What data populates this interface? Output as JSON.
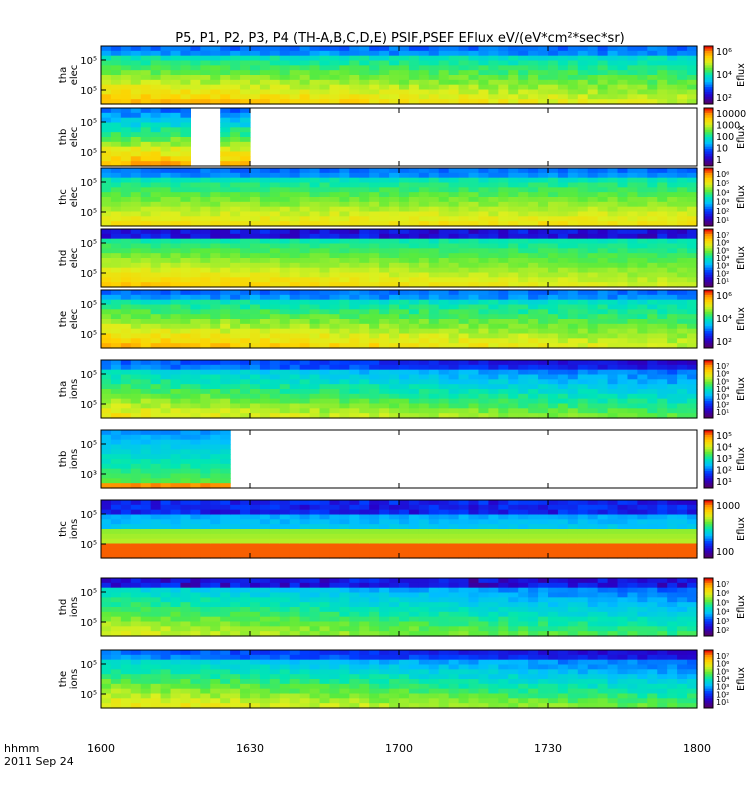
{
  "chart_data": {
    "type": "heatmap",
    "title": "P5, P1, P2, P3, P4  (TH-A,B,C,D,E) PSIF,PSEF EFlux eV/(eV*cm²*sec*sr)",
    "x_ticks": [
      "1600",
      "1630",
      "1700",
      "1730",
      "1800"
    ],
    "time_label": "hhmm",
    "date_label": "2011 Sep 24",
    "colorbar_label": "Eflux",
    "panels": [
      {
        "name": "tha elec",
        "line1": "tha",
        "line2": "elec",
        "y_ticks": [
          "10⁵",
          "10⁵"
        ],
        "cbar_ticks": [
          "10⁶",
          "10⁴",
          "10²"
        ],
        "pattern": "elec",
        "gap": null
      },
      {
        "name": "thb elec",
        "line1": "thb",
        "line2": "elec",
        "y_ticks": [
          "10⁵",
          "10⁵"
        ],
        "cbar_ticks": [
          "10000",
          "1000",
          "100",
          "10",
          "1"
        ],
        "pattern": "thb_elec",
        "gap": [
          0.14,
          0.2
        ]
      },
      {
        "name": "thc elec",
        "line1": "thc",
        "line2": "elec",
        "y_ticks": [
          "10⁵",
          "10⁵"
        ],
        "cbar_ticks": [
          "10⁶",
          "10⁵",
          "10⁴",
          "10³",
          "10²",
          "10¹"
        ],
        "pattern": "elec_flat",
        "gap": null
      },
      {
        "name": "thd elec",
        "line1": "thd",
        "line2": "elec",
        "y_ticks": [
          "10⁵",
          "10⁵"
        ],
        "cbar_ticks": [
          "10⁷",
          "10⁶",
          "10⁵",
          "10⁴",
          "10³",
          "10²",
          "10¹"
        ],
        "pattern": "elec_dark",
        "gap": null
      },
      {
        "name": "the elec",
        "line1": "the",
        "line2": "elec",
        "y_ticks": [
          "10⁵",
          "10⁵"
        ],
        "cbar_ticks": [
          "10⁶",
          "10⁴",
          "10²"
        ],
        "pattern": "elec",
        "gap": null
      },
      {
        "name": "tha ions",
        "line1": "tha",
        "line2": "ions",
        "y_ticks": [
          "10⁵",
          "10⁵"
        ],
        "cbar_ticks": [
          "10⁷",
          "10⁶",
          "10⁵",
          "10⁴",
          "10³",
          "10²",
          "10¹"
        ],
        "pattern": "ions",
        "gap": null
      },
      {
        "name": "thb ions",
        "line1": "thb",
        "line2": "ions",
        "y_ticks": [
          "10⁵",
          "10³"
        ],
        "cbar_ticks": [
          "10⁵",
          "10⁴",
          "10³",
          "10²",
          "10¹"
        ],
        "pattern": "thb_ions",
        "gap": null
      },
      {
        "name": "thc ions",
        "line1": "thc",
        "line2": "ions",
        "y_ticks": [
          "10⁵",
          "10⁵"
        ],
        "cbar_ticks": [
          "1000",
          "100"
        ],
        "pattern": "thc_ions",
        "gap": null
      },
      {
        "name": "thd ions",
        "line1": "thd",
        "line2": "ions",
        "y_ticks": [
          "10⁵",
          "10⁵"
        ],
        "cbar_ticks": [
          "10⁷",
          "10⁶",
          "10⁵",
          "10⁴",
          "10³",
          "10²"
        ],
        "pattern": "ions_dark",
        "gap": null
      },
      {
        "name": "the ions",
        "line1": "the",
        "line2": "ions",
        "y_ticks": [
          "10⁵",
          "10⁵"
        ],
        "cbar_ticks": [
          "10⁷",
          "10⁶",
          "10⁵",
          "10⁴",
          "10³",
          "10²",
          "10¹"
        ],
        "pattern": "ions",
        "gap": null
      }
    ]
  }
}
